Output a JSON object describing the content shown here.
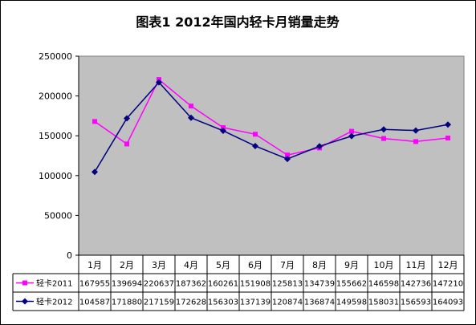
{
  "chart_data": {
    "type": "line",
    "title": "图表1   2012年国内轻卡月销量走势",
    "categories": [
      "1月",
      "2月",
      "3月",
      "4月",
      "5月",
      "6月",
      "7月",
      "8月",
      "9月",
      "10月",
      "11月",
      "12月"
    ],
    "ylim": [
      0,
      250000
    ],
    "yticks": [
      "0",
      "50000",
      "100000",
      "150000",
      "200000",
      "250000"
    ],
    "grid": false,
    "legend": "data table rows (left of table)",
    "series": [
      {
        "name": "轻卡2011",
        "color": "#FF00FF",
        "marker": "square",
        "values": [
          167955,
          139694,
          220637,
          187362,
          160261,
          151908,
          125813,
          134739,
          155662,
          146598,
          142736,
          147210
        ]
      },
      {
        "name": "轻卡2012",
        "color": "#000080",
        "marker": "diamond",
        "values": [
          104587,
          171880,
          217159,
          172628,
          156303,
          137139,
          120874,
          136874,
          149598,
          158031,
          156593,
          164093
        ]
      }
    ]
  },
  "colors": {
    "plot_background": "#C0C0C0"
  }
}
